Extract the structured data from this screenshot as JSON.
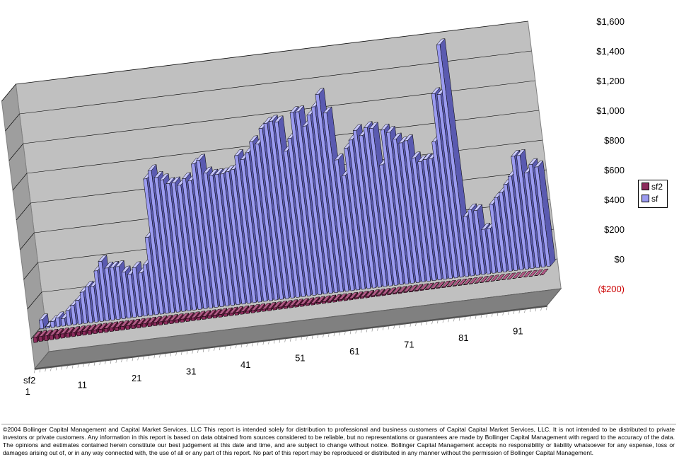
{
  "chart_data": {
    "type": "bar",
    "style": "3d-column",
    "y_tick_labels": [
      "$1,600",
      "$1,400",
      "$1,200",
      "$1,000",
      "$800",
      "$600",
      "$400",
      "$200",
      "$0",
      "($200)"
    ],
    "ylim": [
      -200,
      1600
    ],
    "x_tick_labels": [
      "1",
      "11",
      "21",
      "31",
      "41",
      "51",
      "61",
      "71",
      "81",
      "91"
    ],
    "depth_axis_label": "sf2",
    "legend": [
      "sf2",
      "sf"
    ],
    "legend_position": "right",
    "grid": true,
    "series": [
      {
        "name": "sf",
        "color": "#9b9bf0",
        "values": [
          60,
          10,
          40,
          60,
          50,
          100,
          130,
          160,
          210,
          240,
          240,
          340,
          400,
          350,
          350,
          350,
          310,
          290,
          330,
          290,
          340,
          520,
          910,
          960,
          910,
          890,
          860,
          860,
          840,
          880,
          860,
          970,
          990,
          900,
          880,
          880,
          880,
          890,
          900,
          990,
          960,
          1000,
          1070,
          1050,
          1150,
          1180,
          1190,
          1180,
          980,
          1060,
          1230,
          1230,
          1130,
          1200,
          1250,
          1330,
          1200,
          880,
          770,
          950,
          1000,
          1060,
          1020,
          1070,
          1060,
          810,
          1040,
          1020,
          970,
          940,
          950,
          830,
          800,
          810,
          810,
          920,
          1240,
          1230,
          1560,
          400,
          440,
          430,
          300,
          300,
          460,
          500,
          530,
          580,
          630,
          760,
          760,
          640,
          690,
          670
        ]
      },
      {
        "name": "sf2",
        "color": "#8c2b5c",
        "values": [
          -35,
          -32,
          -32,
          -30,
          -30,
          -28,
          -28,
          -27,
          -27,
          -26,
          -26,
          -25,
          -25,
          -25,
          -24,
          -24,
          -24,
          -23,
          -23,
          -23,
          -22,
          -22,
          -22,
          -21,
          -21,
          -21,
          -20,
          -20,
          -20,
          -19,
          -19,
          -19,
          -18,
          -18,
          -18,
          -17,
          -17,
          -17,
          -16,
          -16,
          -16,
          -15,
          -15,
          -15,
          -14,
          -14,
          -14,
          -13,
          -13,
          -13,
          -12,
          -12,
          -12,
          -11,
          -11,
          -11,
          -10,
          -10,
          -10,
          -9,
          -9,
          -9,
          -8,
          -8,
          -8,
          -7,
          -7,
          -7,
          -6,
          -6,
          -6,
          -5,
          -5,
          -5,
          -4,
          -4,
          -4,
          -3,
          -3,
          -3,
          -2,
          -2,
          -2,
          -2,
          -1,
          -1,
          -1,
          -1,
          0,
          0,
          0,
          0,
          0,
          0
        ]
      }
    ]
  },
  "legend": {
    "items": [
      "sf2",
      "sf"
    ]
  },
  "footer": {
    "text": "©2004 Bollinger Capital Management and Capital Market Services, LLC This report is intended solely for distribution to professional and business customers of Capital Capital Market Services, LLC. It is not intended to be distributed to private investors or private customers. Any information in this report is based on data obtained from sources considered to be reliable, but no representations or guarantees are made by Bollinger Capital Management with regard to the accuracy of the data. The opinions and estimates contained herein constitute our best judgement at this date and time, and are subject to change without notice. Bollinger Capital Management accepts no responsibility or liability whatsoever for any expense, loss or damages arising out of, or in any way connected with, the use of all or any part of this report. No part of this report may be reproduced or distributed in any manner without the permission of Bollinger Capital Management."
  }
}
